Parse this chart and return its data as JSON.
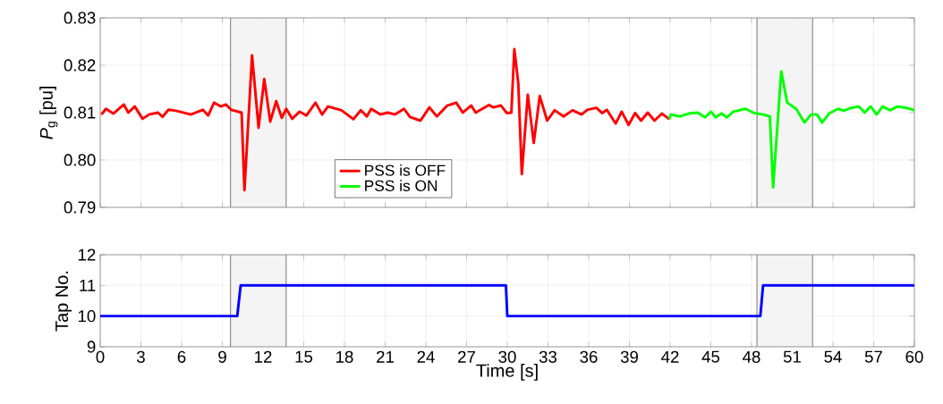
{
  "chart_data": [
    {
      "type": "line",
      "ylabel": "*P*$_{g}$ [pu]",
      "xlim": [
        0,
        60
      ],
      "xticks": [
        0,
        3,
        6,
        9,
        12,
        15,
        18,
        21,
        24,
        27,
        30,
        33,
        36,
        39,
        42,
        45,
        48,
        51,
        54,
        57,
        60
      ],
      "ylim": [
        0.79,
        0.83
      ],
      "yticks": [
        0.79,
        {
          "value": 0.8,
          "label": "0.80"
        },
        0.81,
        0.82,
        0.83
      ],
      "grid": true,
      "tick_labels": "y",
      "legend": "bottom",
      "bands": [
        {
          "axis": "x",
          "from": 9.6,
          "to": 13.7,
          "color": "#f4f4f4"
        },
        {
          "axis": "x",
          "from": 48.4,
          "to": 52.5,
          "color": "#f4f4f4"
        }
      ],
      "series": [
        {
          "name": "PSS is OFF",
          "color": "#ff0000",
          "x": [
            0.09,
            0.42,
            0.97,
            1.74,
            2.07,
            2.55,
            3.12,
            3.6,
            4.26,
            4.59,
            5.03,
            5.58,
            6.68,
            7.56,
            7.96,
            8.39,
            8.88,
            9.27,
            9.65,
            10.42,
            10.63,
            11.19,
            11.67,
            12.09,
            12.53,
            12.97,
            13.38,
            13.71,
            14.15,
            14.7,
            15.2,
            15.87,
            16.35,
            16.79,
            17.78,
            18.66,
            19.2,
            19.65,
            19.97,
            20.63,
            21.18,
            21.73,
            22.39,
            22.83,
            23.6,
            24.26,
            24.81,
            25.58,
            26.24,
            26.72,
            27.34,
            27.67,
            28.65,
            28.98,
            29.53,
            29.97,
            30.3,
            30.52,
            30.81,
            31.07,
            31.51,
            31.95,
            32.39,
            32.94,
            33.49,
            34.15,
            34.81,
            35.47,
            35.9,
            36.56,
            37.0,
            37.33,
            37.99,
            38.43,
            38.94,
            39.42,
            39.86,
            40.35,
            40.85,
            41.4,
            41.95
          ],
          "values": [
            0.8096,
            0.8108,
            0.8098,
            0.8117,
            0.81,
            0.8113,
            0.8087,
            0.8096,
            0.81,
            0.8091,
            0.8106,
            0.8104,
            0.8096,
            0.8106,
            0.8094,
            0.8121,
            0.8113,
            0.8117,
            0.8106,
            0.81,
            0.7936,
            0.8221,
            0.8068,
            0.8171,
            0.8081,
            0.8124,
            0.8089,
            0.8108,
            0.8087,
            0.8102,
            0.8094,
            0.8121,
            0.8096,
            0.8113,
            0.8105,
            0.8086,
            0.8105,
            0.8092,
            0.8108,
            0.8096,
            0.81,
            0.8096,
            0.8108,
            0.8091,
            0.8083,
            0.8111,
            0.8092,
            0.8115,
            0.8121,
            0.81,
            0.8115,
            0.81,
            0.8116,
            0.8111,
            0.8115,
            0.8099,
            0.81,
            0.8234,
            0.8162,
            0.797,
            0.8138,
            0.8036,
            0.8135,
            0.8083,
            0.8105,
            0.8092,
            0.8105,
            0.8096,
            0.8106,
            0.811,
            0.8099,
            0.8106,
            0.8077,
            0.8102,
            0.8074,
            0.8099,
            0.8083,
            0.81,
            0.8083,
            0.8098,
            0.8086
          ]
        },
        {
          "name": "PSS is ON",
          "color": "#00ff00",
          "x": [
            41.95,
            42.05,
            42.72,
            43.38,
            44.03,
            44.58,
            45.02,
            45.35,
            45.79,
            46.18,
            46.67,
            47.55,
            48.2,
            48.87,
            49.35,
            49.59,
            50.19,
            50.63,
            51.29,
            51.9,
            52.39,
            52.83,
            53.2,
            53.71,
            54.37,
            54.81,
            55.35,
            55.9,
            56.34,
            56.78,
            57.22,
            57.66,
            58.21,
            58.76,
            59.42,
            60
          ],
          "values": [
            0.8086,
            0.8096,
            0.8092,
            0.8098,
            0.81,
            0.809,
            0.8102,
            0.809,
            0.8098,
            0.809,
            0.8102,
            0.8108,
            0.8099,
            0.8096,
            0.8092,
            0.7942,
            0.8187,
            0.8121,
            0.8108,
            0.8079,
            0.8096,
            0.8096,
            0.8079,
            0.8098,
            0.8108,
            0.8104,
            0.811,
            0.8113,
            0.81,
            0.8113,
            0.8096,
            0.8113,
            0.8105,
            0.8113,
            0.811,
            0.8105
          ]
        }
      ]
    },
    {
      "type": "line",
      "xlabel": "Time [s]",
      "ylabel": "Tap No.",
      "xlim": [
        0,
        60
      ],
      "xticks": [
        0,
        3,
        6,
        9,
        12,
        15,
        18,
        21,
        24,
        27,
        30,
        33,
        36,
        39,
        42,
        45,
        48,
        51,
        54,
        57,
        60
      ],
      "ylim": [
        9,
        12
      ],
      "yticks": [
        9,
        10,
        11,
        12
      ],
      "grid": true,
      "bands": [
        {
          "axis": "x",
          "from": 9.6,
          "to": 13.7,
          "color": "#f4f4f4"
        },
        {
          "axis": "x",
          "from": 48.4,
          "to": 52.5,
          "color": "#f4f4f4"
        }
      ],
      "series": [
        {
          "color": "#0000ff",
          "x": [
            0,
            10.1,
            10.35,
            29.9,
            30.0,
            48.65,
            48.85,
            60
          ],
          "values": [
            10,
            10,
            11,
            11,
            10,
            10,
            11,
            11
          ]
        }
      ]
    }
  ]
}
